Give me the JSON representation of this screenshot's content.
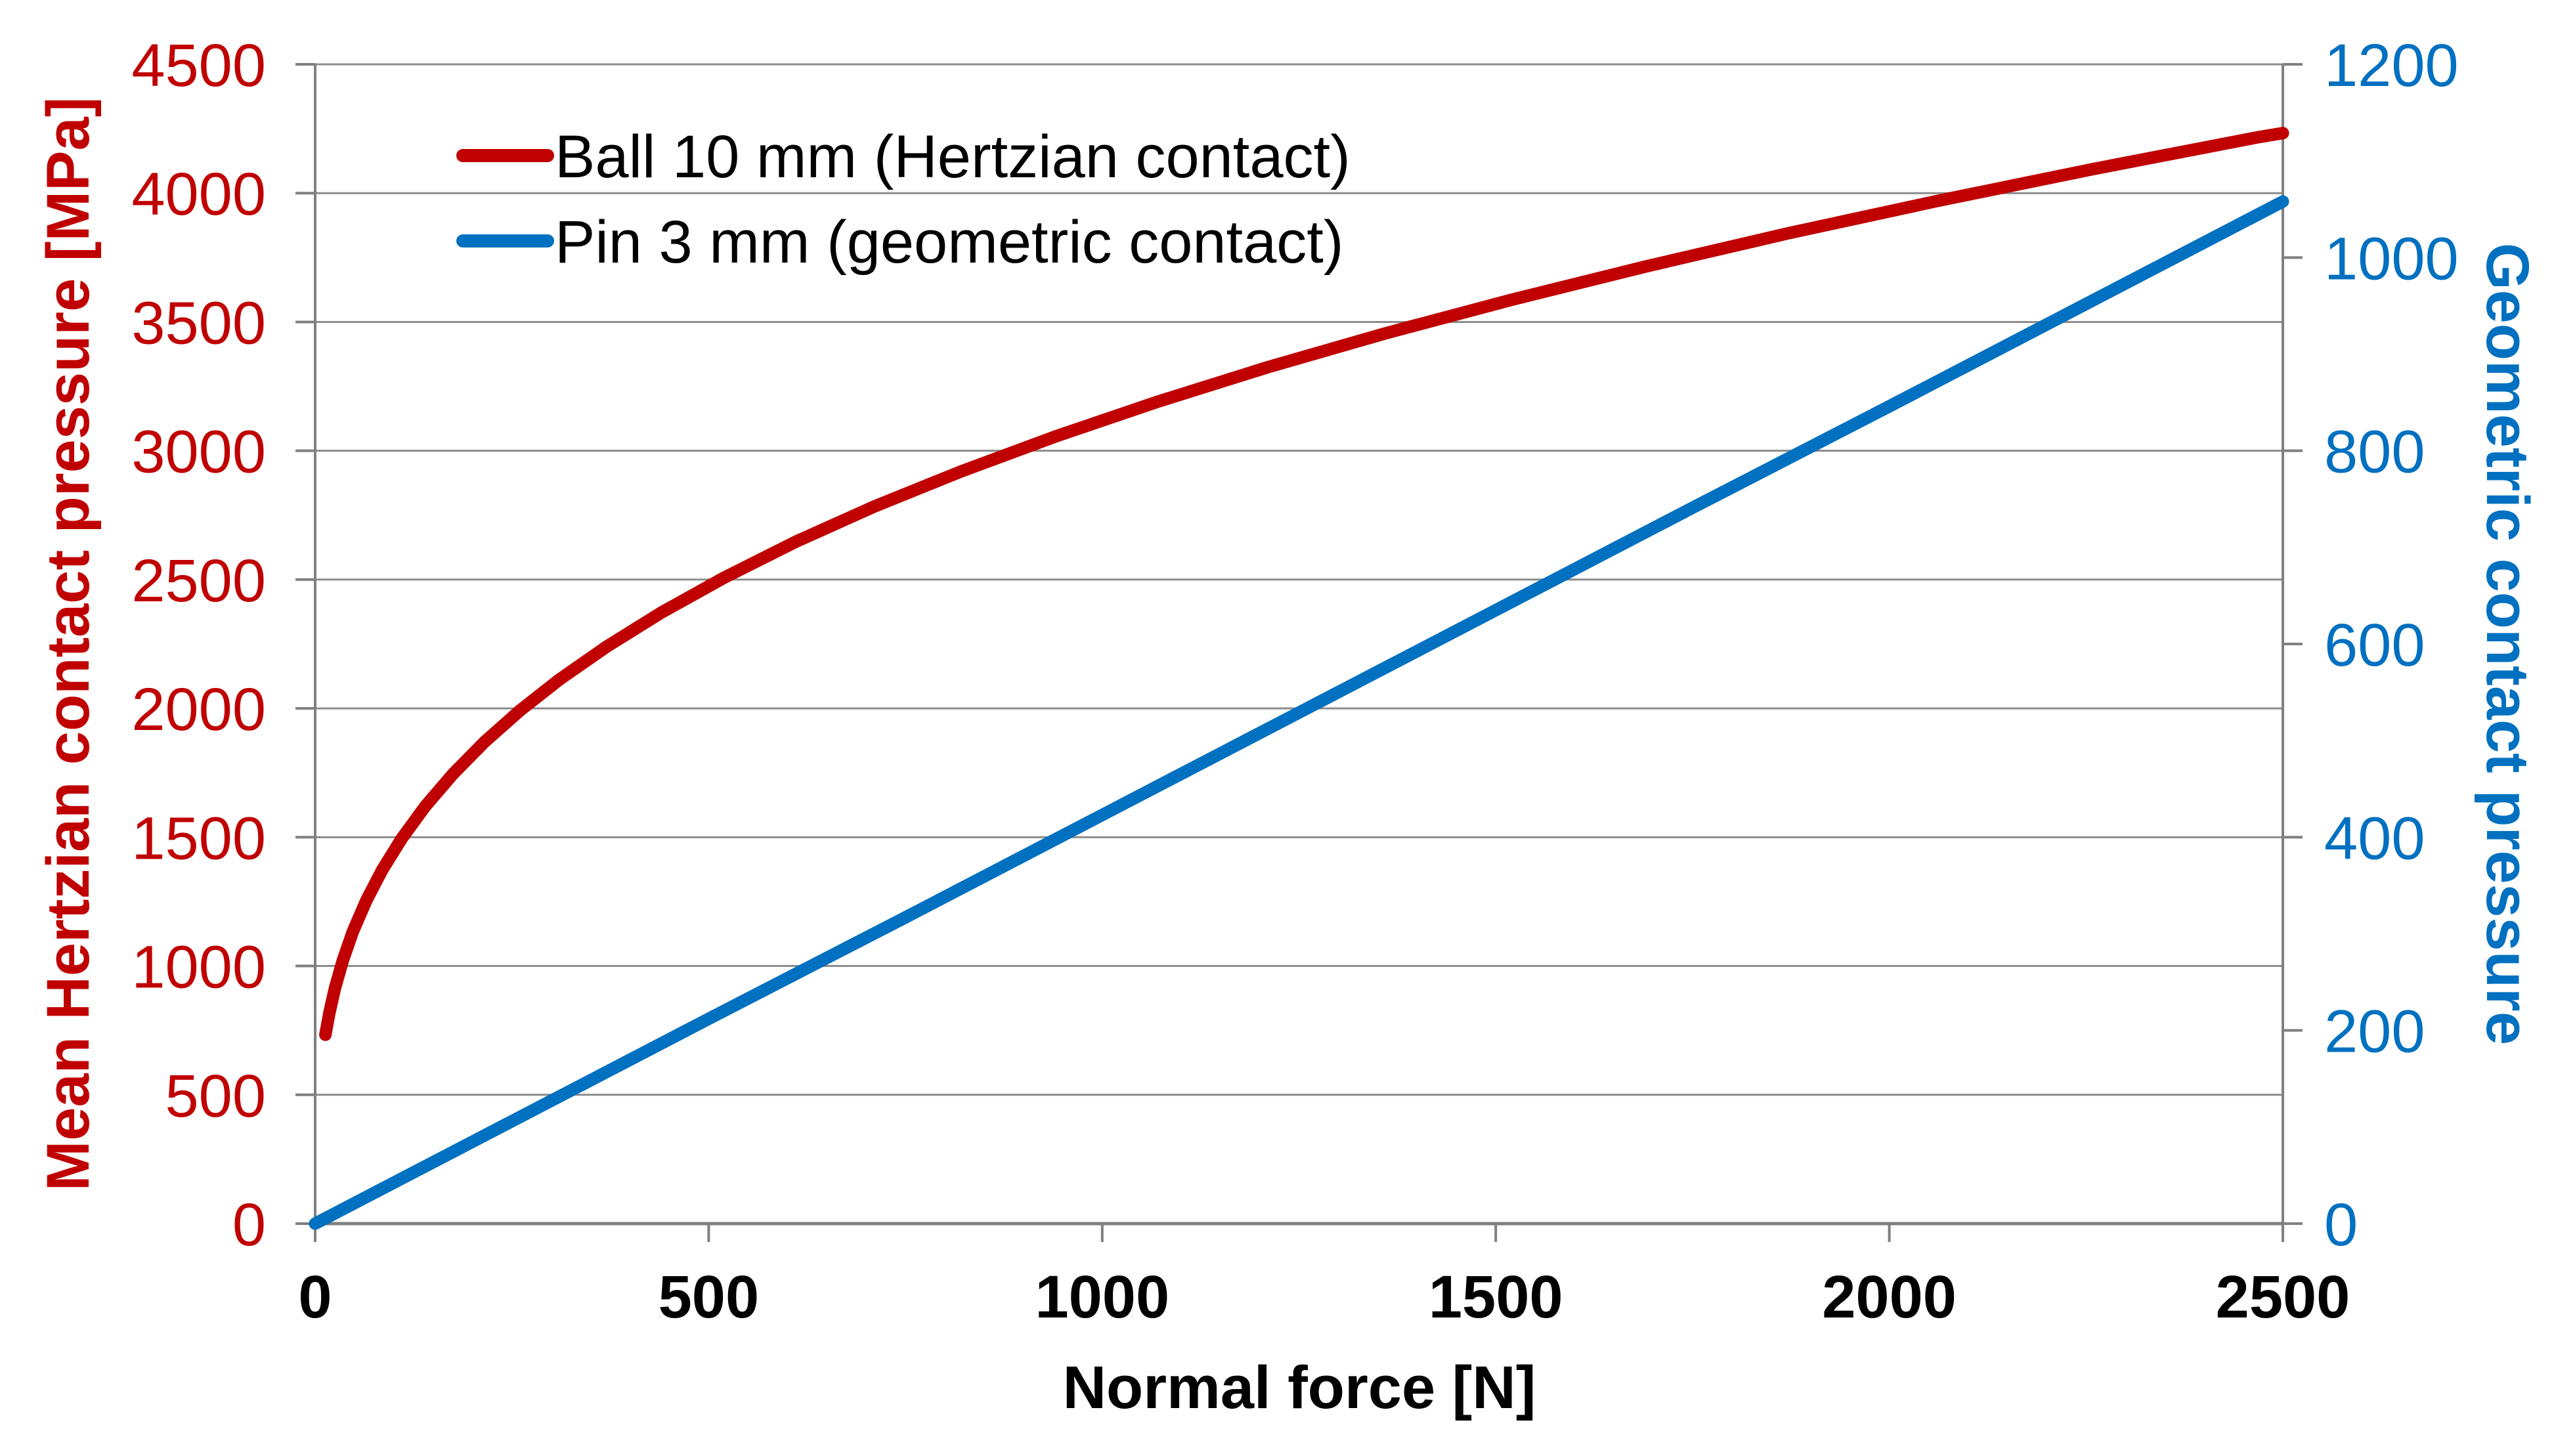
{
  "chart_data": {
    "type": "line",
    "title": "",
    "background": "#FFFFFF",
    "grid": {
      "horizontal": true,
      "vertical": false,
      "color": "#8C8C8C"
    },
    "axis_line_color": "#808080",
    "x_axis": {
      "label": "Normal force [N]",
      "color": "#000000",
      "min": 0,
      "max": 2500,
      "tick_step": 500,
      "tick_labels": [
        "0",
        "500",
        "1000",
        "1500",
        "2000",
        "2500"
      ]
    },
    "y_axis_left": {
      "label": "Mean Hertzian contact pressure [MPa]",
      "color": "#C00000",
      "min": 0,
      "max": 4500,
      "tick_step": 500,
      "tick_labels": [
        "0",
        "500",
        "1000",
        "1500",
        "2000",
        "2500",
        "3000",
        "3500",
        "4000",
        "4500"
      ]
    },
    "y_axis_right": {
      "label": "Geometric contact pressure",
      "color": "#0070C0",
      "min": 0,
      "max": 1200,
      "tick_step": 200,
      "tick_labels": [
        "0",
        "200",
        "400",
        "600",
        "800",
        "1000",
        "1200"
      ]
    },
    "legend": {
      "position": "top-left-inside",
      "entries": [
        "Ball 10 mm (Hertzian contact)",
        "Pin 3 mm (geometric contact)"
      ]
    },
    "series": [
      {
        "name": "Ball 10 mm (Hertzian contact)",
        "axis": "left",
        "color": "#C00000",
        "x": [
          13,
          18,
          25,
          35,
          48,
          65,
          85,
          110,
          140,
          175,
          215,
          260,
          310,
          370,
          440,
          520,
          610,
          710,
          820,
          940,
          1070,
          1210,
          1360,
          1520,
          1690,
          1870,
          2060,
          2260,
          2470,
          2500
        ],
        "y": [
          733,
          817,
          912,
          1020,
          1134,
          1254,
          1372,
          1495,
          1620,
          1745,
          1869,
          1991,
          2111,
          2239,
          2372,
          2508,
          2646,
          2783,
          2919,
          3055,
          3190,
          3324,
          3456,
          3586,
          3715,
          3843,
          3969,
          4094,
          4218,
          4233
        ]
      },
      {
        "name": "Pin 3 mm (geometric contact)",
        "axis": "right",
        "color": "#0070C0",
        "x": [
          0,
          250,
          500,
          750,
          1000,
          1250,
          1500,
          1750,
          2000,
          2250,
          2500
        ],
        "y": [
          0,
          106,
          212,
          317,
          423,
          529,
          635,
          741,
          846,
          952,
          1058
        ]
      }
    ]
  }
}
